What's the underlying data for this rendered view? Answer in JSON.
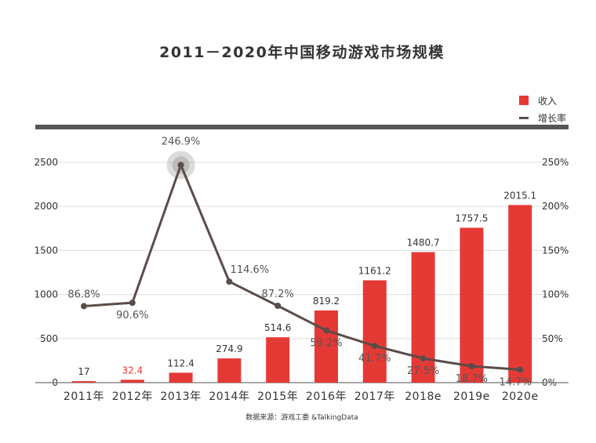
{
  "chart_data": {
    "type": "bar",
    "title": "2011－2020年中国移动游戏市场规模",
    "categories": [
      "2011年",
      "2012年",
      "2013年",
      "2014年",
      "2015年",
      "2016年",
      "2017年",
      "2018e",
      "2019e",
      "2020e"
    ],
    "series": [
      {
        "name": "收入",
        "type": "bar",
        "axis": "left",
        "values": [
          17,
          32.4,
          112.4,
          274.9,
          514.6,
          819.2,
          1161.2,
          1480.7,
          1757.5,
          2015.1
        ],
        "labels": [
          "17",
          "32.4",
          "112.4",
          "274.9",
          "514.6",
          "819.2",
          "1161.2",
          "1480.7",
          "1757.5",
          "2015.1"
        ]
      },
      {
        "name": "增长率",
        "type": "line",
        "axis": "right",
        "values": [
          86.8,
          90.6,
          246.9,
          114.6,
          87.2,
          59.2,
          41.7,
          27.5,
          18.7,
          14.7
        ],
        "labels": [
          "86.8%",
          "90.6%",
          "246.9%",
          "114.6%",
          "87.2%",
          "59.2%",
          "41.7%",
          "27.5%",
          "18.7%",
          "14.7%"
        ]
      }
    ],
    "left_axis": {
      "ylim": [
        0,
        2500
      ],
      "ticks": [
        "0",
        "500",
        "1000",
        "1500",
        "2000",
        "2500"
      ]
    },
    "right_axis": {
      "ylim": [
        0,
        250
      ],
      "ticks": [
        "0%",
        "50%",
        "100%",
        "150%",
        "200%",
        "250%"
      ]
    },
    "grid": true,
    "legend_position": "top-right",
    "source": "数据来源：游戏工委 &TalkingData"
  },
  "colors": {
    "bar": "#e53935",
    "line": "#5a4c48",
    "highlight_label": "#e53935",
    "grid": "#dddddd",
    "axis_text": "#333333",
    "line_label": "#555555"
  }
}
